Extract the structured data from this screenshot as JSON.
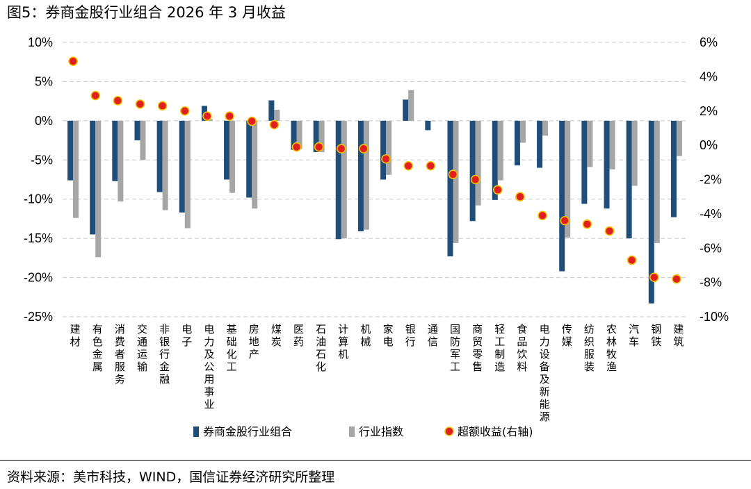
{
  "title": "图5：券商金股行业组合 2026 年 3 月收益",
  "source": "资料来源：美市科技，WIND，国信证券经济研究所整理",
  "colors": {
    "portfolio": "#1f4e79",
    "index": "#a6a6a6",
    "excess": "#e02020",
    "excess_edge": "#f2c200",
    "grid": "#c8c8c8"
  },
  "chart_data": {
    "type": "bar",
    "categories": [
      "建材",
      "有色金属",
      "消费者服务",
      "交通运输",
      "非银行金融",
      "电子",
      "电力及公用事业",
      "基础化工",
      "房地产",
      "煤炭",
      "医药",
      "石油石化",
      "计算机",
      "机械",
      "家电",
      "银行",
      "通信",
      "国防军工",
      "商贸零售",
      "轻工制造",
      "食品饮料",
      "电力设备及新能源",
      "传媒",
      "纺织服装",
      "农林牧渔",
      "汽车",
      "钢铁",
      "建筑"
    ],
    "series": [
      {
        "name": "券商金股行业组合",
        "axis": "left",
        "values": [
          -7.6,
          -14.5,
          -7.7,
          -2.5,
          -9.1,
          -11.7,
          1.9,
          -7.5,
          -9.8,
          2.6,
          -3.7,
          -4.0,
          -15.1,
          -14.1,
          -7.5,
          2.7,
          -1.2,
          -17.3,
          -12.8,
          -10.1,
          -5.7,
          -6.0,
          -19.2,
          -10.6,
          -11.2,
          -15.0,
          -23.3,
          -12.3
        ]
      },
      {
        "name": "行业指数",
        "axis": "left",
        "values": [
          -12.4,
          -17.4,
          -10.3,
          -5.0,
          -11.4,
          -13.7,
          0.2,
          -9.2,
          -11.2,
          1.4,
          -3.6,
          -4.0,
          -15.0,
          -13.9,
          -6.9,
          3.9,
          0.0,
          -15.6,
          -10.8,
          -7.6,
          -2.8,
          -1.9,
          -14.9,
          -5.9,
          -6.2,
          -8.3,
          -15.6,
          -4.5
        ]
      },
      {
        "name": "超额收益(右轴)",
        "axis": "right",
        "type": "scatter",
        "values": [
          4.9,
          2.9,
          2.6,
          2.4,
          2.3,
          2.0,
          1.7,
          1.7,
          1.4,
          1.2,
          -0.1,
          -0.1,
          -0.2,
          -0.2,
          -0.8,
          -1.2,
          -1.2,
          -1.7,
          -2.0,
          -2.6,
          -3.0,
          -4.1,
          -4.4,
          -4.6,
          -5.0,
          -6.7,
          -7.7,
          -7.8
        ]
      }
    ],
    "ylim_left": [
      -25,
      10
    ],
    "yticks_left": [
      "10%",
      "5%",
      "0%",
      "-5%",
      "-10%",
      "-15%",
      "-20%",
      "-25%"
    ],
    "ylim_right": [
      -10,
      6
    ],
    "yticks_right": [
      "6%",
      "4%",
      "2%",
      "0%",
      "-2%",
      "-4%",
      "-6%",
      "-8%",
      "-10%"
    ],
    "grid": "horizontal dashed",
    "legend_position": "bottom"
  }
}
